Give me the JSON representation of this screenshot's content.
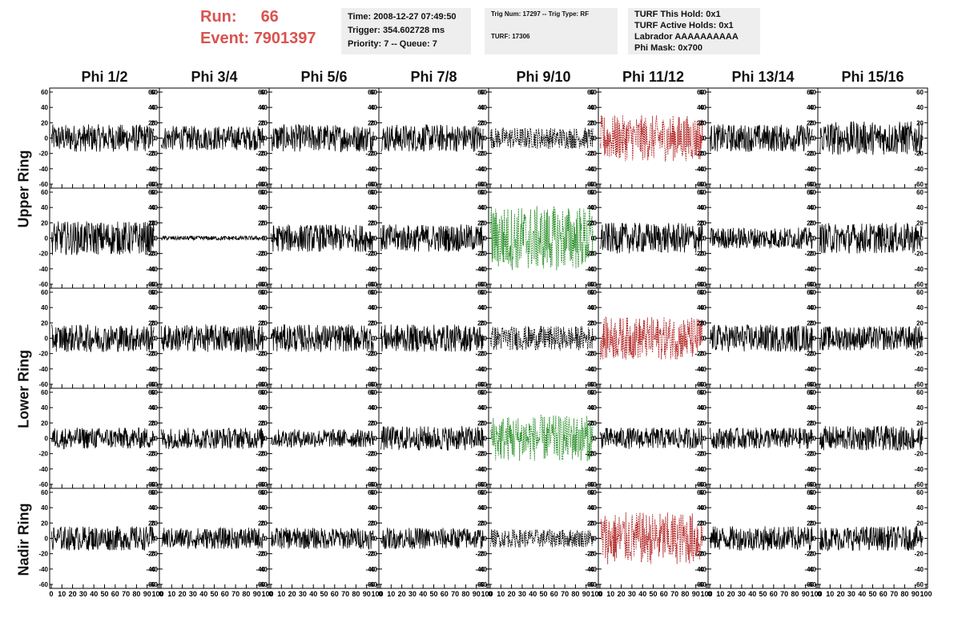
{
  "header": {
    "run_label": "Run:",
    "run_value": "66",
    "event_label": "Event:",
    "event_value": "7901397",
    "accent_color": "#d9534f"
  },
  "info_boxes": {
    "time": {
      "line1": "Time: 2008-12-27 07:49:50",
      "line2": "Trigger: 354.602728 ms",
      "line3": "Priority: 7 -- Queue: 7"
    },
    "trig": {
      "line1": "Trig Num: 17297 -- Trig Type: RF",
      "line2": "TURF: 17306"
    },
    "turf": {
      "line1": "TURF This Hold: 0x1",
      "line2": "TURF Active Holds: 0x1",
      "line3": "Labrador AAAAAAAAAA",
      "line4": "Phi Mask: 0x700"
    }
  },
  "column_titles": [
    "Phi 1/2",
    "Phi 3/4",
    "Phi 5/6",
    "Phi 7/8",
    "Phi 9/10",
    "Phi 11/12",
    "Phi 13/14",
    "Phi 15/16"
  ],
  "row_titles": {
    "upper": "Upper Ring",
    "lower": "Lower Ring",
    "nadir": "Nadir Ring"
  },
  "chart_data": {
    "type": "line",
    "grid": false,
    "rows": 5,
    "columns": 8,
    "xlim": [
      0,
      100
    ],
    "ylim": [
      -60,
      60
    ],
    "x_ticks": [
      0,
      10,
      20,
      30,
      40,
      50,
      60,
      70,
      80,
      90,
      100
    ],
    "x_tick_labels": [
      "0",
      "10",
      "20",
      "30",
      "40",
      "50",
      "60",
      "70",
      "80",
      "90",
      "100"
    ],
    "y_ticks": [
      -60,
      -40,
      -20,
      0,
      20,
      40,
      60
    ],
    "y_tick_labels": [
      "-60",
      "-40",
      "-20",
      "0",
      "20",
      "40",
      "60"
    ],
    "colors": {
      "normal": "#000000",
      "triggered": "#b22222",
      "green": "#228b22"
    },
    "waveform_amplitude": [
      [
        18,
        16,
        18,
        18,
        14,
        30,
        18,
        22
      ],
      [
        22,
        3,
        18,
        18,
        42,
        20,
        14,
        20
      ],
      [
        18,
        18,
        18,
        18,
        16,
        28,
        18,
        16
      ],
      [
        14,
        14,
        12,
        16,
        30,
        14,
        14,
        16
      ],
      [
        16,
        14,
        14,
        14,
        12,
        34,
        16,
        16
      ]
    ],
    "waveform_style": [
      [
        "normal",
        "normal",
        "normal",
        "normal",
        "dotted-black",
        "triggered",
        "normal",
        "normal"
      ],
      [
        "normal",
        "normal",
        "normal",
        "normal",
        "green",
        "normal",
        "normal",
        "normal"
      ],
      [
        "normal",
        "normal",
        "normal",
        "normal",
        "dotted-black",
        "triggered",
        "normal",
        "normal"
      ],
      [
        "normal",
        "normal",
        "normal",
        "normal",
        "green",
        "normal",
        "normal",
        "normal"
      ],
      [
        "normal",
        "normal",
        "normal",
        "normal",
        "dotted-black",
        "triggered",
        "normal",
        "normal"
      ]
    ]
  }
}
